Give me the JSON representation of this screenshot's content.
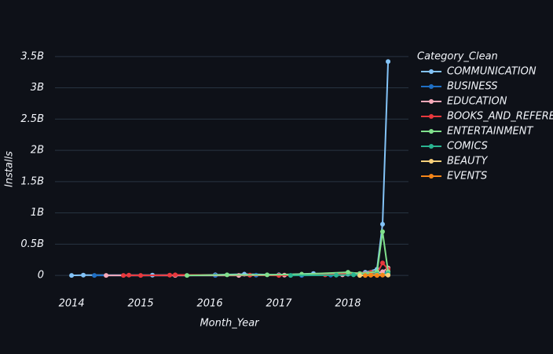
{
  "chart_data": {
    "type": "line",
    "x_label": "Month_Year",
    "y_label": "Installs",
    "legend_title": "Category_Clean",
    "xlim": [
      2013.76,
      2018.875
    ],
    "xticks": [
      2014,
      2015,
      2016,
      2017,
      2018
    ],
    "ylim": [
      -300000000,
      3650000000
    ],
    "yticks": [
      0,
      {
        "value": 500000000,
        "label": "0.5B"
      },
      {
        "value": 1000000000,
        "label": "1B"
      },
      {
        "value": 1500000000,
        "label": "1.5B"
      },
      {
        "value": 2000000000,
        "label": "2B"
      },
      {
        "value": 2500000000,
        "label": "2.5B"
      },
      {
        "value": 3000000000,
        "label": "3B"
      },
      {
        "value": 3500000000,
        "label": "3.5B"
      }
    ],
    "grid": true,
    "legend": "right",
    "series": [
      {
        "name": "COMMUNICATION",
        "color": "#83c3f7",
        "x": [
          2014.0,
          2014.17,
          2015.17,
          2016.08,
          2016.5,
          2017.0,
          2017.5,
          2018.0,
          2018.25,
          2018.42,
          2018.5,
          2018.58
        ],
        "values": [
          1000000,
          5000000,
          5000000,
          10000000,
          20000000,
          10000000,
          30000000,
          20000000,
          50000000,
          100000000,
          820000000,
          3420000000
        ]
      },
      {
        "name": "BUSINESS",
        "color": "#1f6fc5",
        "x": [
          2014.33,
          2016.08,
          2016.67,
          2017.33,
          2017.75,
          2018.17,
          2018.42,
          2018.58
        ],
        "values": [
          1000000,
          1000000,
          5000000,
          1000000,
          5000000,
          10000000,
          30000000,
          60000000
        ]
      },
      {
        "name": "EDUCATION",
        "color": "#f6a9b9",
        "x": [
          2014.5,
          2015.5,
          2016.42,
          2017.08,
          2017.92,
          2018.33,
          2018.5,
          2018.58
        ],
        "values": [
          1000000,
          1000000,
          1000000,
          5000000,
          10000000,
          20000000,
          60000000,
          120000000
        ]
      },
      {
        "name": "BOOKS_AND_REFERENCE",
        "color": "#e8383d",
        "x": [
          2014.75,
          2014.83,
          2015.0,
          2015.42,
          2015.5,
          2016.58,
          2017.0,
          2017.67,
          2018.33,
          2018.42,
          2018.5,
          2018.58
        ],
        "values": [
          1000000,
          5000000,
          1000000,
          5000000,
          10000000,
          5000000,
          1000000,
          10000000,
          50000000,
          30000000,
          200000000,
          100000000
        ]
      },
      {
        "name": "ENTERTAINMENT",
        "color": "#80e08c",
        "x": [
          2015.67,
          2016.25,
          2016.83,
          2017.33,
          2018.0,
          2018.17,
          2018.42,
          2018.5,
          2018.58
        ],
        "values": [
          1000000,
          10000000,
          10000000,
          20000000,
          50000000,
          30000000,
          60000000,
          700000000,
          60000000
        ]
      },
      {
        "name": "COMICS",
        "color": "#2ab490",
        "x": [
          2017.17,
          2017.83,
          2018.08,
          2018.42,
          2018.58
        ],
        "values": [
          1000000,
          5000000,
          10000000,
          20000000,
          30000000
        ]
      },
      {
        "name": "BEAUTY",
        "color": "#f9d07b",
        "x": [
          2018.17,
          2018.33,
          2018.42,
          2018.5,
          2018.58
        ],
        "values": [
          1000000,
          5000000,
          5000000,
          10000000,
          5000000
        ]
      },
      {
        "name": "EVENTS",
        "color": "#f58518",
        "x": [
          2018.25,
          2018.33,
          2018.42,
          2018.5
        ],
        "values": [
          1000000,
          5000000,
          1000000,
          5000000
        ]
      }
    ]
  }
}
